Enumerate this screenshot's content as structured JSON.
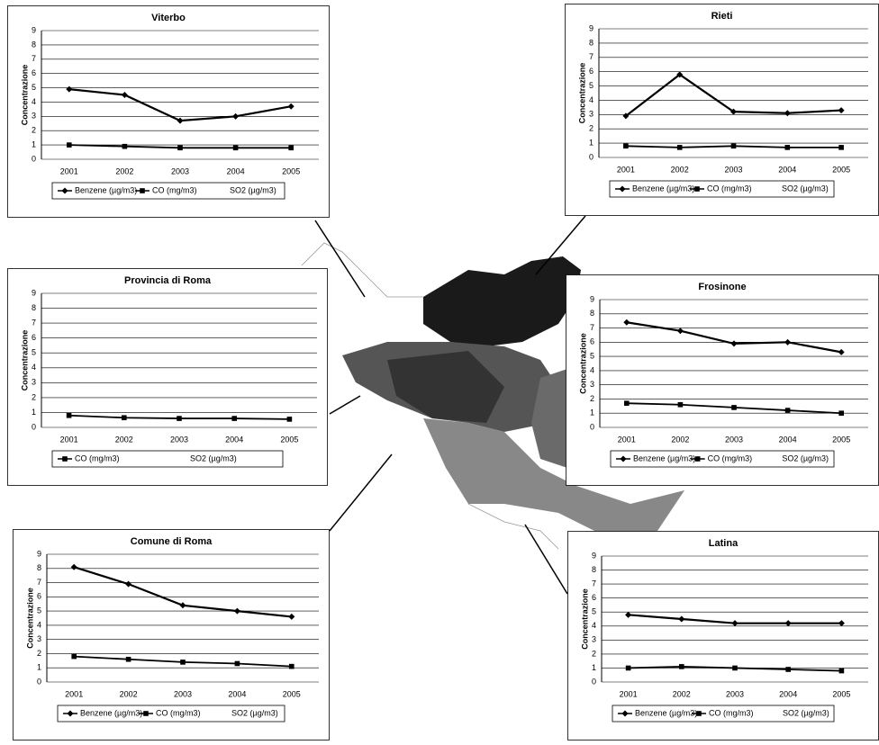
{
  "chart_data": [
    {
      "type": "line",
      "title": "Viterbo",
      "y_label": "Concentrazione",
      "categories": [
        "2001",
        "2002",
        "2003",
        "2004",
        "2005"
      ],
      "ylim": [
        0,
        9
      ],
      "yticks": [
        0,
        1,
        2,
        3,
        4,
        5,
        6,
        7,
        8,
        9
      ],
      "grid": true,
      "series": [
        {
          "name": "Benzene (µg/m3)",
          "color": "#000000",
          "values": [
            4.9,
            4.5,
            2.7,
            3.0,
            3.7
          ]
        },
        {
          "name": "CO (mg/m3)",
          "color": "#000000",
          "values": [
            1.0,
            0.9,
            0.8,
            0.8,
            0.8
          ]
        },
        {
          "name": "SO2 (µg/m3)",
          "color": "#000000",
          "values": [
            null,
            null,
            null,
            null,
            null
          ]
        }
      ]
    },
    {
      "type": "line",
      "title": "Rieti",
      "y_label": "Concentrazione",
      "categories": [
        "2001",
        "2002",
        "2003",
        "2004",
        "2005"
      ],
      "ylim": [
        0,
        9
      ],
      "yticks": [
        0,
        1,
        2,
        3,
        4,
        5,
        6,
        7,
        8,
        9
      ],
      "grid": true,
      "series": [
        {
          "name": "Benzene (µg/m3)",
          "color": "#000000",
          "values": [
            2.9,
            5.8,
            3.2,
            3.1,
            3.3
          ]
        },
        {
          "name": "CO (mg/m3)",
          "color": "#000000",
          "values": [
            0.8,
            0.7,
            0.8,
            0.7,
            0.7
          ]
        },
        {
          "name": "SO2 (µg/m3)",
          "color": "#000000",
          "values": [
            null,
            null,
            null,
            null,
            null
          ]
        }
      ]
    },
    {
      "type": "line",
      "title": "Provincia di Roma",
      "y_label": "Concentrazione",
      "categories": [
        "2001",
        "2002",
        "2003",
        "2004",
        "2005"
      ],
      "ylim": [
        0,
        9
      ],
      "yticks": [
        0,
        1,
        2,
        3,
        4,
        5,
        6,
        7,
        8,
        9
      ],
      "grid": true,
      "series": [
        {
          "name": "CO (mg/m3)",
          "color": "#000000",
          "values": [
            0.8,
            0.65,
            0.6,
            0.6,
            0.55
          ]
        },
        {
          "name": "SO2 (µg/m3)",
          "color": "#000000",
          "values": [
            null,
            null,
            null,
            null,
            null
          ]
        }
      ]
    },
    {
      "type": "line",
      "title": "Frosinone",
      "y_label": "Concentrazione",
      "categories": [
        "2001",
        "2002",
        "2003",
        "2004",
        "2005"
      ],
      "ylim": [
        0,
        9
      ],
      "yticks": [
        0,
        1,
        2,
        3,
        4,
        5,
        6,
        7,
        8,
        9
      ],
      "grid": true,
      "series": [
        {
          "name": "Benzene (µg/m3)",
          "color": "#000000",
          "values": [
            7.4,
            6.8,
            5.9,
            6.0,
            5.3
          ]
        },
        {
          "name": "CO (mg/m3)",
          "color": "#000000",
          "values": [
            1.7,
            1.6,
            1.4,
            1.2,
            1.0
          ]
        },
        {
          "name": "SO2 (µg/m3)",
          "color": "#000000",
          "values": [
            null,
            null,
            null,
            null,
            null
          ]
        }
      ]
    },
    {
      "type": "line",
      "title": "Comune di Roma",
      "y_label": "Concentrazione",
      "categories": [
        "2001",
        "2002",
        "2003",
        "2004",
        "2005"
      ],
      "ylim": [
        0,
        9
      ],
      "yticks": [
        0,
        1,
        2,
        3,
        4,
        5,
        6,
        7,
        8,
        9
      ],
      "grid": true,
      "series": [
        {
          "name": "Benzene (µg/m3)",
          "color": "#000000",
          "values": [
            8.1,
            6.9,
            5.4,
            5.0,
            4.6
          ]
        },
        {
          "name": "CO (mg/m3)",
          "color": "#000000",
          "values": [
            1.8,
            1.6,
            1.4,
            1.3,
            1.1
          ]
        },
        {
          "name": "SO2 (µg/m3)",
          "color": "#000000",
          "values": [
            null,
            null,
            null,
            null,
            null
          ]
        }
      ]
    },
    {
      "type": "line",
      "title": "Latina",
      "y_label": "Concentrazione",
      "categories": [
        "2001",
        "2002",
        "2003",
        "2004",
        "2005"
      ],
      "ylim": [
        0,
        9
      ],
      "yticks": [
        0,
        1,
        2,
        3,
        4,
        5,
        6,
        7,
        8,
        9
      ],
      "grid": true,
      "series": [
        {
          "name": "Benzene (µg/m3)",
          "color": "#000000",
          "values": [
            4.8,
            4.5,
            4.2,
            4.2,
            4.2
          ]
        },
        {
          "name": "CO (mg/m3)",
          "color": "#000000",
          "values": [
            1.0,
            1.1,
            1.0,
            0.9,
            0.8
          ]
        },
        {
          "name": "SO2 (µg/m3)",
          "color": "#000000",
          "values": [
            null,
            null,
            null,
            null,
            null
          ]
        }
      ]
    }
  ]
}
